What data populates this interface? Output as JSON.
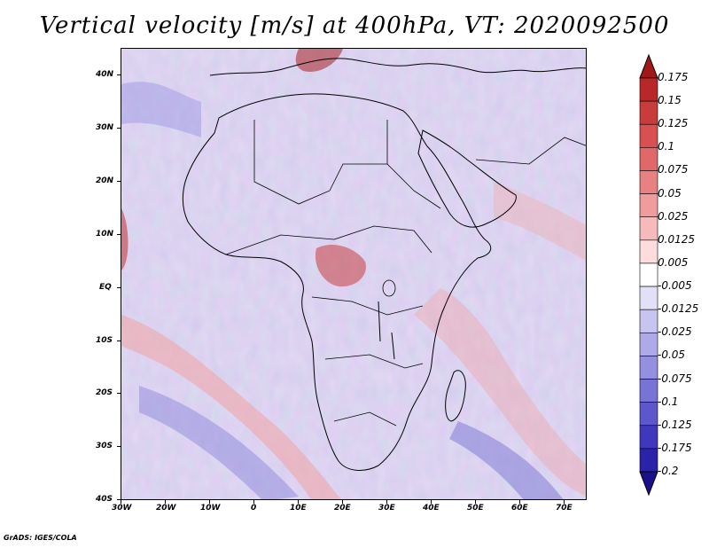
{
  "title": "Vertical velocity [m/s] at 400hPa, VT: 2020092500",
  "footer": "GrADS: IGES/COLA",
  "map": {
    "lon_range": [
      -30,
      75
    ],
    "lat_range": [
      -40,
      45
    ],
    "x_ticks": [
      "30W",
      "20W",
      "10W",
      "0",
      "10E",
      "20E",
      "30E",
      "40E",
      "50E",
      "60E",
      "70E"
    ],
    "y_ticks": [
      "40N",
      "30N",
      "20N",
      "10N",
      "EQ",
      "10S",
      "20S",
      "30S",
      "40S"
    ]
  },
  "colorbar": {
    "levels": [
      "0.175",
      "0.15",
      "0.125",
      "0.1",
      "0.075",
      "0.05",
      "0.025",
      "0.0125",
      "0.005",
      "-0.005",
      "-0.0125",
      "-0.025",
      "-0.05",
      "-0.075",
      "-0.1",
      "-0.125",
      "-0.175",
      "-0.2"
    ],
    "colors": [
      "#a01818",
      "#b82828",
      "#c83c3c",
      "#d85050",
      "#e06868",
      "#e88282",
      "#f09c9c",
      "#f6baba",
      "#fcdcdc",
      "#ffffff",
      "#e2e0f6",
      "#c8c4f0",
      "#aeaae8",
      "#9490e0",
      "#7874d6",
      "#5c58cc",
      "#4038bc",
      "#2a22a8",
      "#1a108c"
    ]
  }
}
